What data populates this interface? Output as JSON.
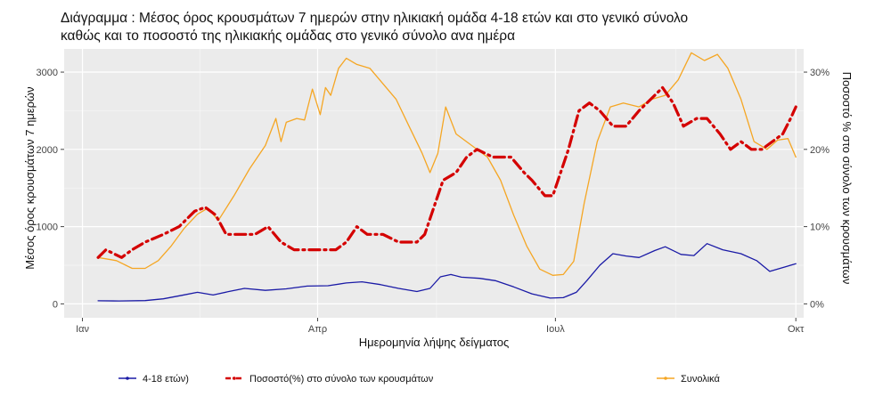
{
  "chart_data": {
    "type": "line",
    "title_lines": [
      "Διάγραμμα    : Μέσος όρος κρουσμάτων 7 ημερών στην ηλικιακή ομάδα 4-18 ετών και στο γενικό σύνολο",
      "καθώς και το ποσοστό της ηλικιακής ομάδας στο γενικό σύνολο ανα ημέρα"
    ],
    "xlabel": "Ημερομηνία λήψης δείγματος",
    "ylabel": "Μέσος όρος κρουσμάτων 7 ημερών",
    "ylabel_right": "Ποσοστό % στο σύνολο των κρουσμάτων",
    "x_ticks": [
      {
        "label": "Ιαν",
        "date": "2021-01-01"
      },
      {
        "label": "Απρ",
        "date": "2021-04-01"
      },
      {
        "label": "Ιουλ",
        "date": "2021-07-01"
      },
      {
        "label": "Οκτ",
        "date": "2021-10-01"
      }
    ],
    "xlim": [
      "2020-12-25",
      "2021-10-04"
    ],
    "ylim": [
      -180,
      3300
    ],
    "y_ticks": [
      0,
      1000,
      2000,
      3000
    ],
    "ylim_right": [
      -1.8,
      33
    ],
    "y_ticks_right": [
      {
        "value": 0,
        "label": "0%"
      },
      {
        "value": 10,
        "label": "10%"
      },
      {
        "value": 20,
        "label": "20%"
      },
      {
        "value": 30,
        "label": "30%"
      }
    ],
    "grid": true,
    "legend_position": "bottom",
    "series": [
      {
        "name": "4-18 ετών)",
        "axis": "left",
        "color": "#1a1aa6",
        "style": "solid",
        "points": [
          [
            "2021-01-07",
            40
          ],
          [
            "2021-01-15",
            38
          ],
          [
            "2021-01-25",
            42
          ],
          [
            "2021-02-01",
            65
          ],
          [
            "2021-02-08",
            110
          ],
          [
            "2021-02-14",
            150
          ],
          [
            "2021-02-20",
            115
          ],
          [
            "2021-02-26",
            160
          ],
          [
            "2021-03-04",
            200
          ],
          [
            "2021-03-12",
            175
          ],
          [
            "2021-03-20",
            195
          ],
          [
            "2021-03-28",
            230
          ],
          [
            "2021-04-05",
            235
          ],
          [
            "2021-04-12",
            270
          ],
          [
            "2021-04-18",
            285
          ],
          [
            "2021-04-25",
            250
          ],
          [
            "2021-05-02",
            200
          ],
          [
            "2021-05-09",
            160
          ],
          [
            "2021-05-14",
            200
          ],
          [
            "2021-05-18",
            350
          ],
          [
            "2021-05-22",
            380
          ],
          [
            "2021-05-26",
            345
          ],
          [
            "2021-06-02",
            330
          ],
          [
            "2021-06-08",
            300
          ],
          [
            "2021-06-15",
            220
          ],
          [
            "2021-06-22",
            130
          ],
          [
            "2021-06-29",
            75
          ],
          [
            "2021-07-04",
            80
          ],
          [
            "2021-07-09",
            150
          ],
          [
            "2021-07-13",
            300
          ],
          [
            "2021-07-18",
            500
          ],
          [
            "2021-07-23",
            650
          ],
          [
            "2021-07-28",
            620
          ],
          [
            "2021-08-02",
            600
          ],
          [
            "2021-08-08",
            690
          ],
          [
            "2021-08-12",
            740
          ],
          [
            "2021-08-18",
            640
          ],
          [
            "2021-08-23",
            625
          ],
          [
            "2021-08-28",
            780
          ],
          [
            "2021-09-03",
            700
          ],
          [
            "2021-09-10",
            650
          ],
          [
            "2021-09-16",
            560
          ],
          [
            "2021-09-21",
            420
          ],
          [
            "2021-09-27",
            480
          ],
          [
            "2021-10-01",
            520
          ]
        ]
      },
      {
        "name": "Ποσοστό(%) στο σύνολο των κρουσμάτων",
        "axis": "right",
        "color": "#d40000",
        "style": "dashdot",
        "points": [
          [
            "2021-01-07",
            6
          ],
          [
            "2021-01-10",
            7
          ],
          [
            "2021-01-13",
            6.5
          ],
          [
            "2021-01-16",
            6
          ],
          [
            "2021-01-20",
            7
          ],
          [
            "2021-01-25",
            8
          ],
          [
            "2021-02-01",
            9
          ],
          [
            "2021-02-07",
            10
          ],
          [
            "2021-02-13",
            12
          ],
          [
            "2021-02-17",
            12.5
          ],
          [
            "2021-02-21",
            11.5
          ],
          [
            "2021-02-25",
            9
          ],
          [
            "2021-03-01",
            9
          ],
          [
            "2021-03-08",
            9
          ],
          [
            "2021-03-13",
            10
          ],
          [
            "2021-03-18",
            8
          ],
          [
            "2021-03-23",
            7
          ],
          [
            "2021-04-01",
            7
          ],
          [
            "2021-04-08",
            7
          ],
          [
            "2021-04-12",
            8
          ],
          [
            "2021-04-16",
            10
          ],
          [
            "2021-04-20",
            9
          ],
          [
            "2021-04-26",
            9
          ],
          [
            "2021-05-02",
            8
          ],
          [
            "2021-05-09",
            8
          ],
          [
            "2021-05-12",
            9
          ],
          [
            "2021-05-15",
            12
          ],
          [
            "2021-05-19",
            16
          ],
          [
            "2021-05-24",
            17
          ],
          [
            "2021-05-28",
            19
          ],
          [
            "2021-06-01",
            20
          ],
          [
            "2021-06-07",
            19
          ],
          [
            "2021-06-14",
            19
          ],
          [
            "2021-06-19",
            17
          ],
          [
            "2021-06-22",
            16
          ],
          [
            "2021-06-27",
            14
          ],
          [
            "2021-06-30",
            14
          ],
          [
            "2021-07-02",
            16
          ],
          [
            "2021-07-06",
            20
          ],
          [
            "2021-07-10",
            25
          ],
          [
            "2021-07-14",
            26
          ],
          [
            "2021-07-18",
            25
          ],
          [
            "2021-07-23",
            23
          ],
          [
            "2021-07-28",
            23
          ],
          [
            "2021-08-02",
            25
          ],
          [
            "2021-08-08",
            27
          ],
          [
            "2021-08-11",
            28
          ],
          [
            "2021-08-15",
            26
          ],
          [
            "2021-08-19",
            23
          ],
          [
            "2021-08-24",
            24
          ],
          [
            "2021-08-28",
            24
          ],
          [
            "2021-09-02",
            22
          ],
          [
            "2021-09-06",
            20
          ],
          [
            "2021-09-10",
            21
          ],
          [
            "2021-09-14",
            20
          ],
          [
            "2021-09-18",
            20
          ],
          [
            "2021-09-22",
            21
          ],
          [
            "2021-09-26",
            22
          ],
          [
            "2021-09-29",
            24
          ],
          [
            "2021-10-01",
            25.5
          ]
        ]
      },
      {
        "name": "Συνολικά",
        "axis": "left",
        "color": "#f5a623",
        "style": "solid",
        "points": [
          [
            "2021-01-07",
            600
          ],
          [
            "2021-01-14",
            560
          ],
          [
            "2021-01-20",
            460
          ],
          [
            "2021-01-25",
            460
          ],
          [
            "2021-01-30",
            560
          ],
          [
            "2021-02-04",
            750
          ],
          [
            "2021-02-09",
            980
          ],
          [
            "2021-02-14",
            1160
          ],
          [
            "2021-02-18",
            1240
          ],
          [
            "2021-02-22",
            1080
          ],
          [
            "2021-02-28",
            1400
          ],
          [
            "2021-03-06",
            1750
          ],
          [
            "2021-03-12",
            2050
          ],
          [
            "2021-03-16",
            2400
          ],
          [
            "2021-03-18",
            2100
          ],
          [
            "2021-03-20",
            2350
          ],
          [
            "2021-03-24",
            2400
          ],
          [
            "2021-03-27",
            2380
          ],
          [
            "2021-03-30",
            2780
          ],
          [
            "2021-04-02",
            2450
          ],
          [
            "2021-04-04",
            2800
          ],
          [
            "2021-04-06",
            2700
          ],
          [
            "2021-04-09",
            3050
          ],
          [
            "2021-04-12",
            3180
          ],
          [
            "2021-04-16",
            3100
          ],
          [
            "2021-04-21",
            3050
          ],
          [
            "2021-04-26",
            2850
          ],
          [
            "2021-05-01",
            2650
          ],
          [
            "2021-05-06",
            2300
          ],
          [
            "2021-05-11",
            1950
          ],
          [
            "2021-05-14",
            1700
          ],
          [
            "2021-05-17",
            1950
          ],
          [
            "2021-05-20",
            2550
          ],
          [
            "2021-05-24",
            2200
          ],
          [
            "2021-05-30",
            2050
          ],
          [
            "2021-06-05",
            1900
          ],
          [
            "2021-06-10",
            1600
          ],
          [
            "2021-06-15",
            1150
          ],
          [
            "2021-06-20",
            750
          ],
          [
            "2021-06-25",
            450
          ],
          [
            "2021-06-30",
            370
          ],
          [
            "2021-07-04",
            380
          ],
          [
            "2021-07-08",
            550
          ],
          [
            "2021-07-12",
            1300
          ],
          [
            "2021-07-17",
            2100
          ],
          [
            "2021-07-22",
            2550
          ],
          [
            "2021-07-27",
            2600
          ],
          [
            "2021-08-02",
            2550
          ],
          [
            "2021-08-07",
            2650
          ],
          [
            "2021-08-12",
            2700
          ],
          [
            "2021-08-17",
            2900
          ],
          [
            "2021-08-22",
            3250
          ],
          [
            "2021-08-27",
            3150
          ],
          [
            "2021-09-01",
            3230
          ],
          [
            "2021-09-05",
            3050
          ],
          [
            "2021-09-10",
            2650
          ],
          [
            "2021-09-15",
            2100
          ],
          [
            "2021-09-20",
            2000
          ],
          [
            "2021-09-24",
            2120
          ],
          [
            "2021-09-28",
            2140
          ],
          [
            "2021-10-01",
            1900
          ]
        ]
      }
    ]
  }
}
